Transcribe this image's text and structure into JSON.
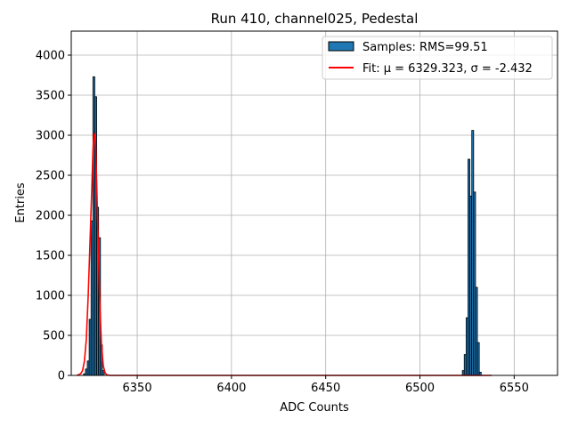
{
  "chart_data": {
    "type": "bar",
    "title": "Run 410, channel025, Pedestal",
    "xlabel": "ADC Counts",
    "ylabel": "Entries",
    "xlim": [
      6315,
      6573
    ],
    "ylim": [
      0,
      4300
    ],
    "xticks": [
      6350,
      6400,
      6450,
      6500,
      6550
    ],
    "yticks": [
      0,
      500,
      1000,
      1500,
      2000,
      2500,
      3000,
      3500,
      4000
    ],
    "grid": true,
    "legend_position": "top-right",
    "legend": {
      "samples_label": "Samples: RMS=99.51",
      "fit_label": "Fit: μ = 6329.323, σ = -2.432"
    },
    "colors": {
      "bar_fill": "#1f77b4",
      "bar_edge": "#000000",
      "fit_line": "#ff0000",
      "grid": "#b0b0b0"
    },
    "histogram": {
      "bin_width": 1,
      "bins": [
        {
          "x": 6322,
          "count": 20
        },
        {
          "x": 6323,
          "count": 80
        },
        {
          "x": 6324,
          "count": 180
        },
        {
          "x": 6325,
          "count": 700
        },
        {
          "x": 6326,
          "count": 1930
        },
        {
          "x": 6327,
          "count": 3730
        },
        {
          "x": 6328,
          "count": 3480
        },
        {
          "x": 6329,
          "count": 2100
        },
        {
          "x": 6330,
          "count": 1720
        },
        {
          "x": 6331,
          "count": 380
        },
        {
          "x": 6332,
          "count": 60
        },
        {
          "x": 6523,
          "count": 60
        },
        {
          "x": 6524,
          "count": 260
        },
        {
          "x": 6525,
          "count": 720
        },
        {
          "x": 6526,
          "count": 2700
        },
        {
          "x": 6527,
          "count": 2240
        },
        {
          "x": 6528,
          "count": 3060
        },
        {
          "x": 6529,
          "count": 2290
        },
        {
          "x": 6530,
          "count": 1100
        },
        {
          "x": 6531,
          "count": 410
        },
        {
          "x": 6532,
          "count": 40
        }
      ]
    },
    "fit_curve": {
      "x": [
        6318,
        6320,
        6321,
        6322,
        6323,
        6324,
        6325,
        6326,
        6326.5,
        6327,
        6327.5,
        6328,
        6328.5,
        6329,
        6329.5,
        6330,
        6331,
        6332,
        6333,
        6334,
        6336,
        6340,
        6400,
        6450,
        6500,
        6520,
        6522,
        6524,
        6526,
        6528,
        6530,
        6532,
        6534,
        6536,
        6538
      ],
      "y": [
        0,
        20,
        60,
        180,
        450,
        1000,
        1700,
        2400,
        2800,
        3020,
        3000,
        2800,
        2400,
        1900,
        1500,
        1000,
        400,
        120,
        30,
        5,
        0,
        0,
        0,
        0,
        0,
        0,
        0,
        0,
        0,
        0,
        0,
        0,
        0,
        0,
        0
      ]
    }
  }
}
